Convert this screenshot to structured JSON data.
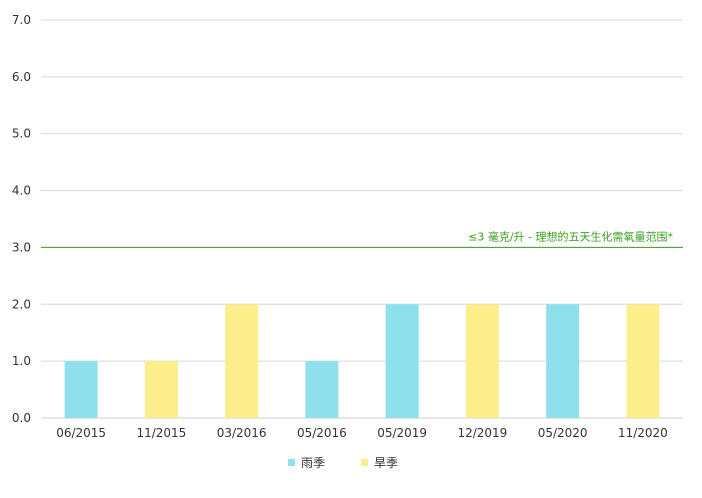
{
  "chart_data": {
    "type": "bar",
    "categories": [
      "06/2015",
      "11/2015",
      "03/2016",
      "05/2016",
      "05/2019",
      "12/2019",
      "05/2020",
      "11/2020"
    ],
    "values": [
      1.0,
      1.0,
      2.0,
      1.0,
      2.0,
      2.0,
      2.0,
      2.0
    ],
    "season": [
      "雨季",
      "旱季",
      "旱季",
      "雨季",
      "雨季",
      "旱季",
      "雨季",
      "旱季"
    ],
    "series": [
      {
        "name": "雨季",
        "color": "#8ee0ec"
      },
      {
        "name": "旱季",
        "color": "#fdee8c"
      }
    ],
    "ylim": [
      0,
      7
    ],
    "yticks": [
      "0.0",
      "1.0",
      "2.0",
      "3.0",
      "4.0",
      "5.0",
      "6.0",
      "7.0"
    ],
    "grid": true,
    "legend_position": "bottom",
    "reference_line": {
      "value": 3.0,
      "label": "≤3 毫克/升 - 理想的五天生化需氧量范围*",
      "color": "#3aa01e"
    },
    "title": "",
    "xlabel": "",
    "ylabel": ""
  }
}
